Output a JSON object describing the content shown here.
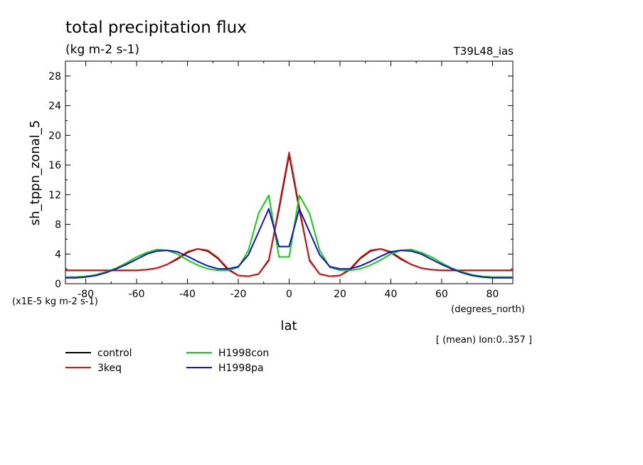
{
  "chart_data": {
    "type": "line",
    "title": "total precipitation flux",
    "subtitle": "(kg m-2 s-1)",
    "tag": "T39L48_ias",
    "ylabel": "sh_tppn_zonal_5",
    "yscale_label": "(x1E-5 kg m-2 s-1)",
    "xlabel": "lat",
    "xunits": "(degrees_north)",
    "note": "[ (mean) lon:0..357 ]",
    "xlim": [
      -88,
      88
    ],
    "ylim": [
      0,
      30
    ],
    "xticks": [
      -80,
      -60,
      -40,
      -20,
      0,
      20,
      40,
      60,
      80
    ],
    "yticks": [
      0,
      4,
      8,
      12,
      16,
      20,
      24,
      28
    ],
    "x": [
      -88,
      -84,
      -80,
      -76,
      -72,
      -68,
      -64,
      -60,
      -56,
      -52,
      -48,
      -44,
      -40,
      -36,
      -32,
      -28,
      -24,
      -20,
      -16,
      -12,
      -8,
      -4,
      0,
      4,
      8,
      12,
      16,
      20,
      24,
      28,
      32,
      36,
      40,
      44,
      48,
      52,
      56,
      60,
      64,
      68,
      72,
      76,
      80,
      84,
      88
    ],
    "series": [
      {
        "name": "control",
        "color": "#000000",
        "values": [
          1.8,
          1.8,
          1.8,
          1.8,
          1.8,
          1.8,
          1.8,
          1.8,
          1.9,
          2.1,
          2.6,
          3.3,
          4.2,
          4.7,
          4.4,
          3.4,
          1.9,
          1.1,
          1.0,
          1.3,
          3.2,
          10.0,
          17.4,
          10.0,
          3.2,
          1.3,
          1.0,
          1.1,
          1.9,
          3.4,
          4.4,
          4.7,
          4.2,
          3.3,
          2.6,
          2.1,
          1.9,
          1.8,
          1.8,
          1.8,
          1.8,
          1.8,
          1.8,
          1.8,
          1.8
        ]
      },
      {
        "name": "3keq",
        "color": "#e01010",
        "values": [
          1.8,
          1.8,
          1.8,
          1.8,
          1.8,
          1.8,
          1.8,
          1.8,
          1.9,
          2.1,
          2.6,
          3.4,
          4.3,
          4.7,
          4.5,
          3.5,
          2.0,
          1.1,
          1.0,
          1.3,
          3.1,
          10.3,
          17.7,
          10.3,
          3.1,
          1.3,
          1.0,
          1.1,
          2.0,
          3.5,
          4.5,
          4.7,
          4.3,
          3.4,
          2.6,
          2.1,
          1.9,
          1.8,
          1.8,
          1.8,
          1.8,
          1.8,
          1.8,
          1.8,
          1.8
        ]
      },
      {
        "name": "H1998con",
        "color": "#10d010",
        "values": [
          0.9,
          0.9,
          1.0,
          1.2,
          1.6,
          2.1,
          2.8,
          3.6,
          4.2,
          4.6,
          4.5,
          4.0,
          3.2,
          2.5,
          2.0,
          1.8,
          1.8,
          2.2,
          4.5,
          9.5,
          11.9,
          3.6,
          3.6,
          11.9,
          9.5,
          4.5,
          2.2,
          1.8,
          1.8,
          2.0,
          2.5,
          3.2,
          4.0,
          4.5,
          4.6,
          4.2,
          3.6,
          2.8,
          2.1,
          1.6,
          1.2,
          1.0,
          0.9,
          0.9,
          0.9
        ]
      },
      {
        "name": "H1998pa",
        "color": "#1010d0",
        "values": [
          0.8,
          0.8,
          0.9,
          1.1,
          1.5,
          2.0,
          2.6,
          3.3,
          4.0,
          4.4,
          4.5,
          4.3,
          3.7,
          3.0,
          2.4,
          2.0,
          2.0,
          2.3,
          3.9,
          7.0,
          10.1,
          5.0,
          5.0,
          10.1,
          7.0,
          3.9,
          2.3,
          2.0,
          2.0,
          2.4,
          3.0,
          3.7,
          4.3,
          4.5,
          4.4,
          4.0,
          3.3,
          2.6,
          2.0,
          1.5,
          1.1,
          0.9,
          0.8,
          0.8,
          0.8
        ]
      }
    ],
    "legend": [
      {
        "name": "control",
        "color": "#000000"
      },
      {
        "name": "3keq",
        "color": "#e01010"
      },
      {
        "name": "H1998con",
        "color": "#10d010"
      },
      {
        "name": "H1998pa",
        "color": "#1010d0"
      }
    ]
  }
}
